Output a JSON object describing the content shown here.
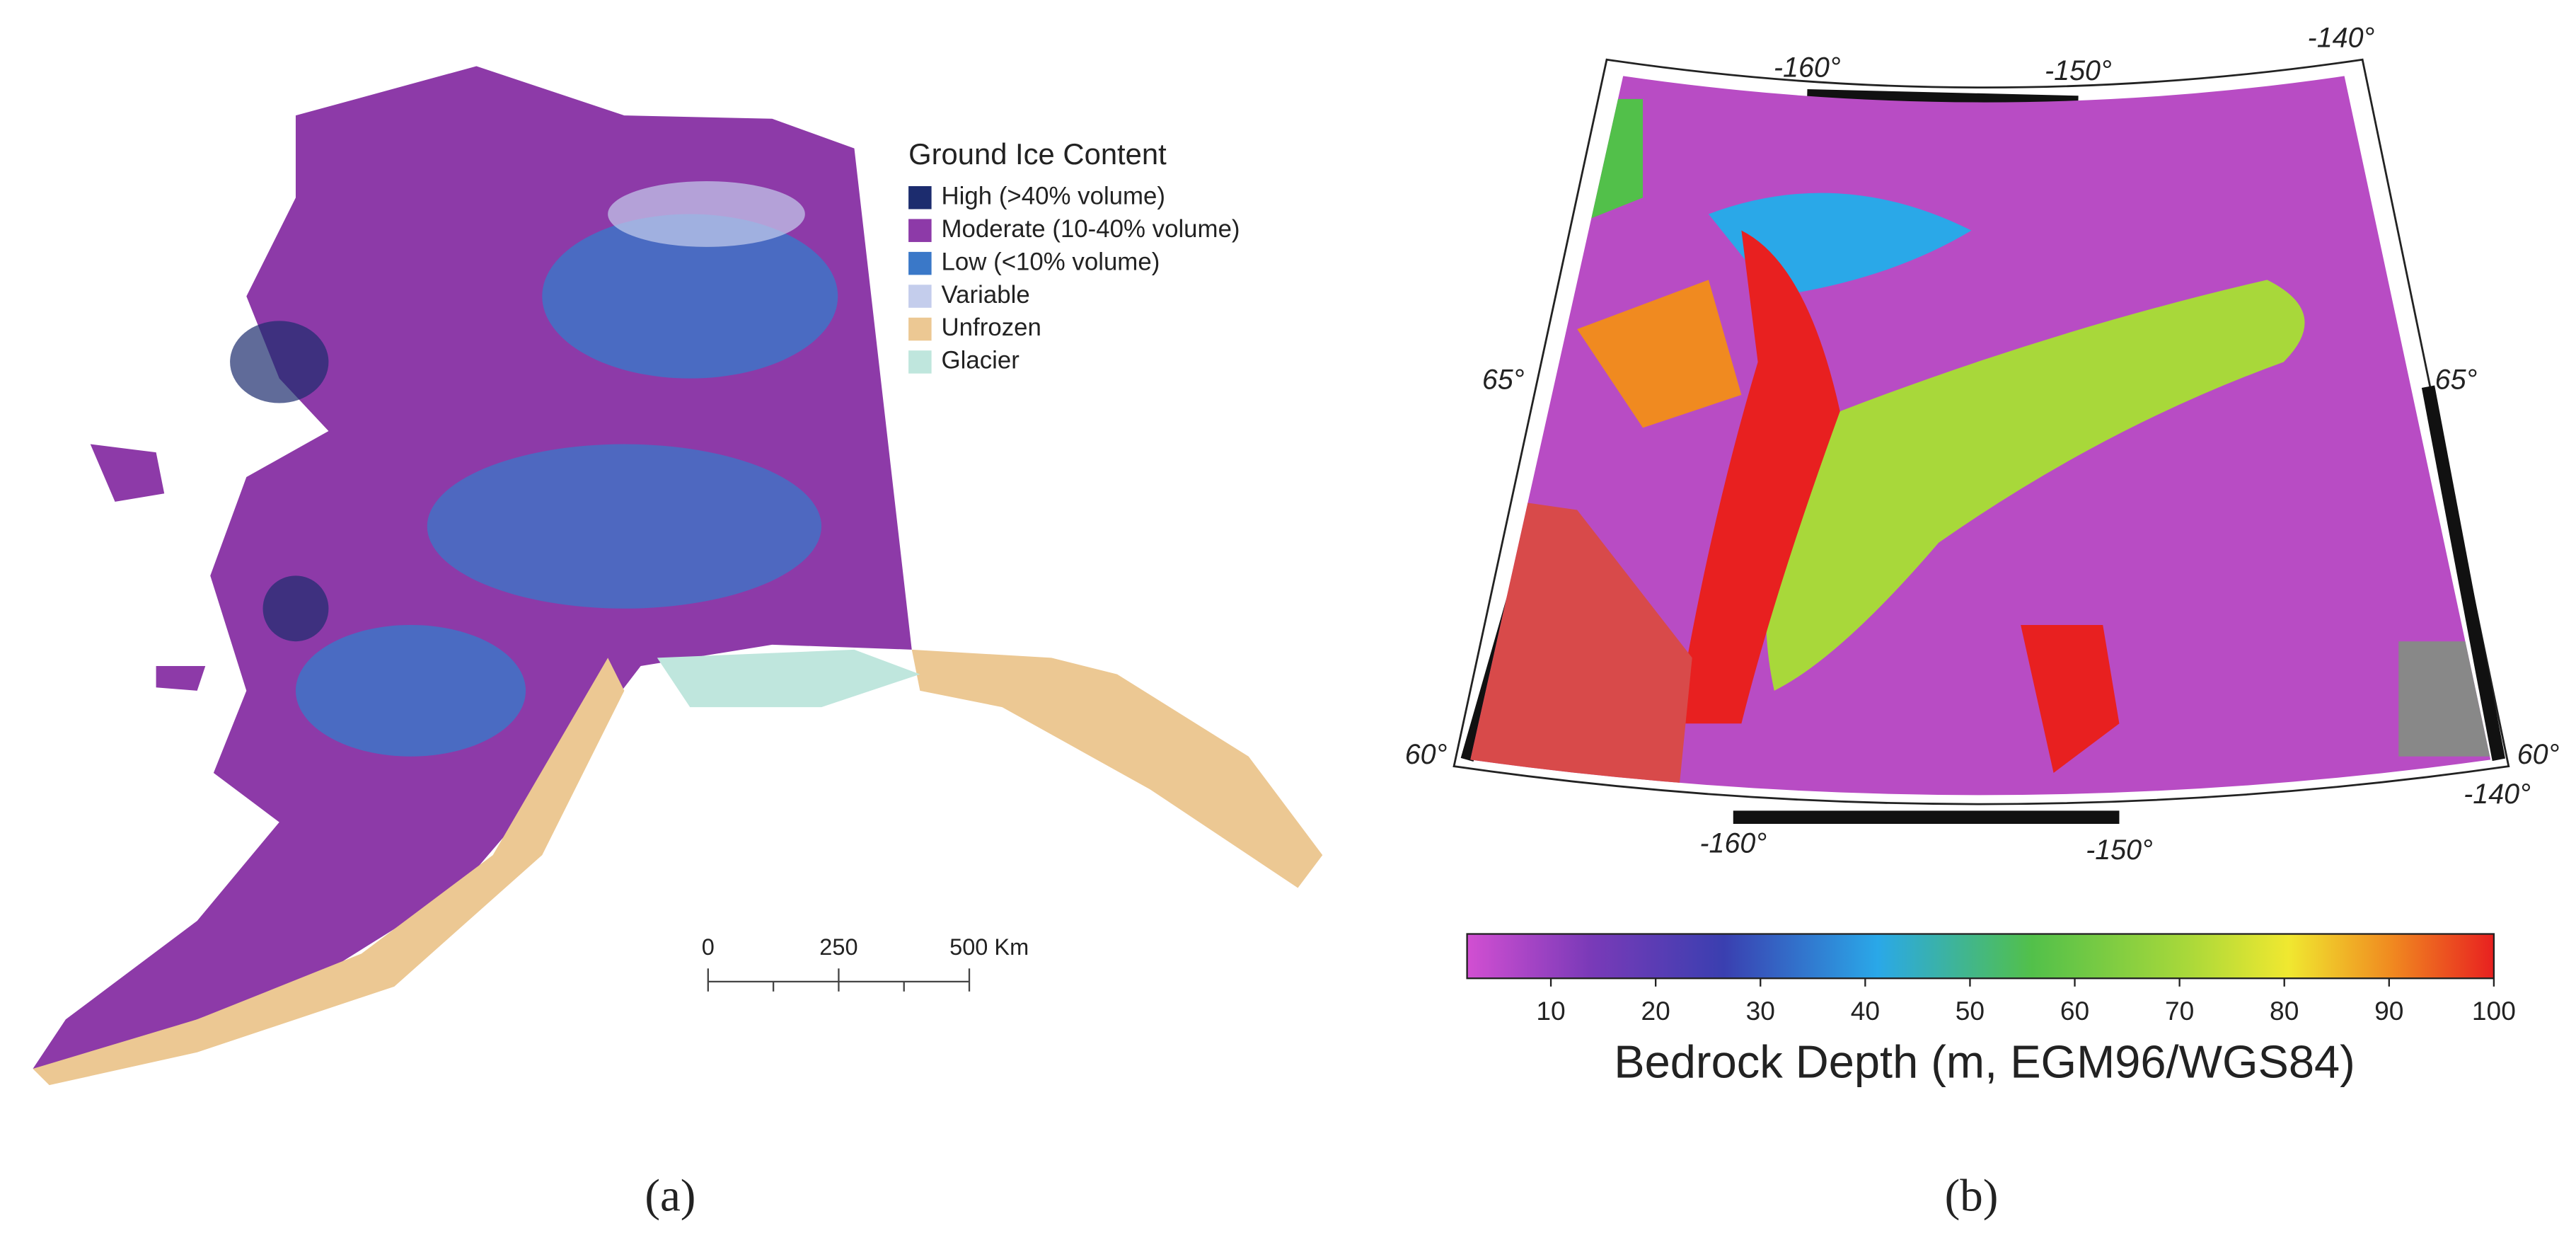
{
  "panel_a": {
    "label": "(a)",
    "legend": {
      "title": "Ground Ice Content",
      "items": [
        {
          "label": "High (>40% volume)",
          "color": "#1c2c6e"
        },
        {
          "label": "Moderate (10-40% volume)",
          "color": "#8d3aa8"
        },
        {
          "label": "Low (<10% volume)",
          "color": "#3a78c8"
        },
        {
          "label": "Variable",
          "color": "#c4cdec"
        },
        {
          "label": "Unfrozen",
          "color": "#ecc893"
        },
        {
          "label": "Glacier",
          "color": "#bfe6dd"
        }
      ]
    },
    "scale_bar": {
      "range": [
        0,
        500
      ],
      "ticks": [
        0,
        250,
        {
          "value": 500,
          "label": "500 Km"
        }
      ]
    }
  },
  "panel_b": {
    "label": "(b)",
    "graticule": {
      "top": [
        "-160°",
        "-150°",
        "-140°"
      ],
      "bottom": [
        "-160°",
        "-150°",
        "-140°"
      ],
      "left": [
        "65°",
        "60°"
      ],
      "right": [
        "65°",
        "60°"
      ]
    },
    "colorbar": {
      "title": "Bedrock Depth (m, EGM96/WGS84)",
      "range": [
        2,
        100
      ],
      "ticks": [
        10,
        20,
        30,
        40,
        50,
        60,
        70,
        80,
        90,
        100
      ]
    }
  }
}
